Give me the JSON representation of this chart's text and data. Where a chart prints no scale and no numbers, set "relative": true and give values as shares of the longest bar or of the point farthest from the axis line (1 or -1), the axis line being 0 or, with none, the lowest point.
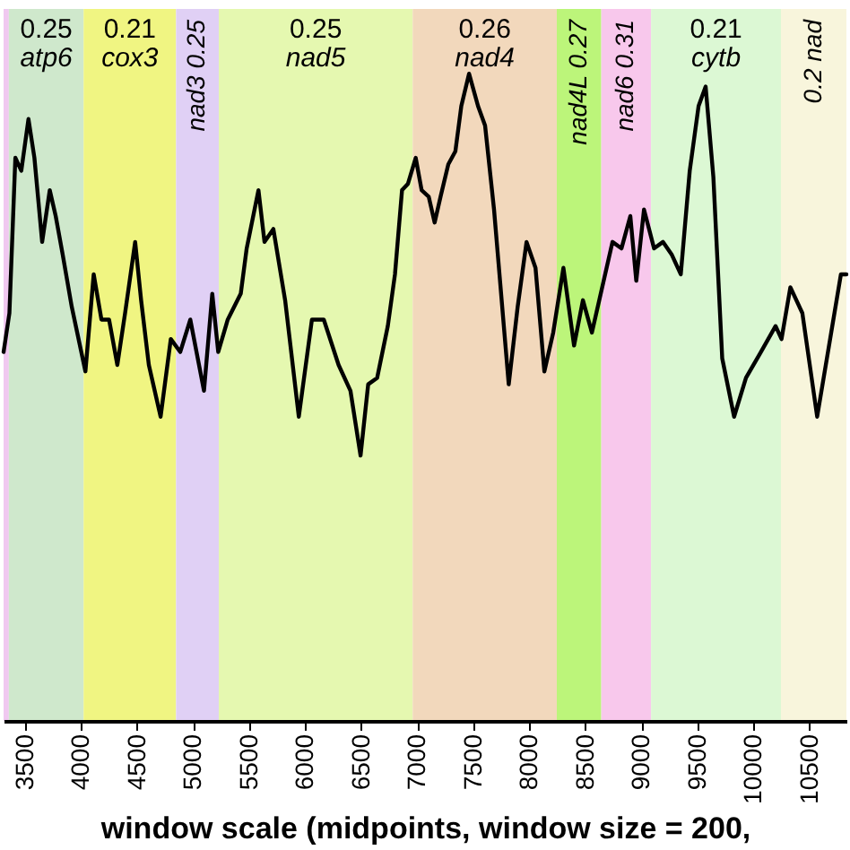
{
  "chart_data": {
    "type": "line",
    "relative": true,
    "xlabel": "window scale (midpoints, window size = 200,",
    "x": [
      3310,
      3362,
      3415,
      3468,
      3532,
      3585,
      3654,
      3722,
      3775,
      3838,
      3918,
      4040,
      4114,
      4183,
      4251,
      4325,
      4394,
      4484,
      4537,
      4606,
      4711,
      4802,
      4886,
      4976,
      5098,
      5172,
      5225,
      5310,
      5426,
      5479,
      5584,
      5638,
      5717,
      5822,
      5944,
      6061,
      6167,
      6299,
      6405,
      6495,
      6563,
      6643,
      6738,
      6802,
      6865,
      6918,
      6987,
      7040,
      7103,
      7156,
      7209,
      7278,
      7341,
      7394,
      7463,
      7543,
      7606,
      7686,
      7817,
      7897,
      7976,
      8056,
      8135,
      8214,
      8305,
      8400,
      8479,
      8559,
      8664,
      8743,
      8823,
      8902,
      8955,
      9024,
      9114,
      9193,
      9273,
      9352,
      9432,
      9511,
      9574,
      9643,
      9722,
      9828,
      9934,
      10067,
      10198,
      10251,
      10330,
      10437,
      10569,
      10675,
      10781,
      10830
    ],
    "series": [
      {
        "color": "#000000",
        "values": [
          0.57,
          0.63,
          0.87,
          0.85,
          0.93,
          0.87,
          0.74,
          0.82,
          0.78,
          0.72,
          0.64,
          0.54,
          0.69,
          0.62,
          0.62,
          0.55,
          0.63,
          0.74,
          0.65,
          0.55,
          0.47,
          0.59,
          0.57,
          0.62,
          0.51,
          0.66,
          0.57,
          0.62,
          0.66,
          0.73,
          0.82,
          0.74,
          0.76,
          0.65,
          0.47,
          0.62,
          0.62,
          0.55,
          0.51,
          0.41,
          0.52,
          0.53,
          0.61,
          0.69,
          0.82,
          0.83,
          0.87,
          0.82,
          0.81,
          0.77,
          0.81,
          0.86,
          0.88,
          0.95,
          1.0,
          0.95,
          0.92,
          0.79,
          0.52,
          0.64,
          0.74,
          0.7,
          0.54,
          0.6,
          0.7,
          0.58,
          0.65,
          0.6,
          0.68,
          0.74,
          0.73,
          0.78,
          0.68,
          0.79,
          0.73,
          0.74,
          0.72,
          0.69,
          0.85,
          0.95,
          0.98,
          0.84,
          0.56,
          0.47,
          0.53,
          0.57,
          0.61,
          0.59,
          0.67,
          0.63,
          0.47,
          0.58,
          0.69,
          0.69
        ]
      }
    ],
    "xlim": [
      3310,
      10830
    ],
    "xticks": [
      3500,
      4000,
      4500,
      5000,
      5500,
      6000,
      6500,
      7000,
      7500,
      8000,
      8500,
      9000,
      9500,
      10000,
      10500
    ],
    "grid": false,
    "legend": false,
    "marker": "none",
    "line_style": "solid",
    "bands": [
      {
        "axis": "x",
        "from": 3310,
        "to": 3357,
        "color": "#f0c8f0"
      },
      {
        "axis": "x",
        "from": 3357,
        "to": 4024,
        "label": "0.25 atp6",
        "color": "#cfe8cc"
      },
      {
        "axis": "x",
        "from": 4024,
        "to": 4849,
        "label": "0.21 cox3",
        "color": "#f0f582"
      },
      {
        "axis": "x",
        "from": 4849,
        "to": 5230,
        "label": "nad3 0.25",
        "color": "#e0d0f5"
      },
      {
        "axis": "x",
        "from": 5230,
        "to": 6960,
        "label": "0.25 nad5",
        "color": "#e5f8b0"
      },
      {
        "axis": "x",
        "from": 6960,
        "to": 8246,
        "label": "0.26 nad4",
        "color": "#f2d8bc"
      },
      {
        "axis": "x",
        "from": 8246,
        "to": 8643,
        "label": "nad4L 0.27",
        "color": "#bcf57a"
      },
      {
        "axis": "x",
        "from": 8643,
        "to": 9087,
        "label": "nad6 0.31",
        "color": "#f8c8ec"
      },
      {
        "axis": "x",
        "from": 9087,
        "to": 10246,
        "label": "0.21 cytb",
        "color": "#dcf8d4"
      },
      {
        "axis": "x",
        "from": 10246,
        "to": 10830,
        "label": "0.2 nad",
        "color": "#f8f5dc"
      }
    ]
  }
}
